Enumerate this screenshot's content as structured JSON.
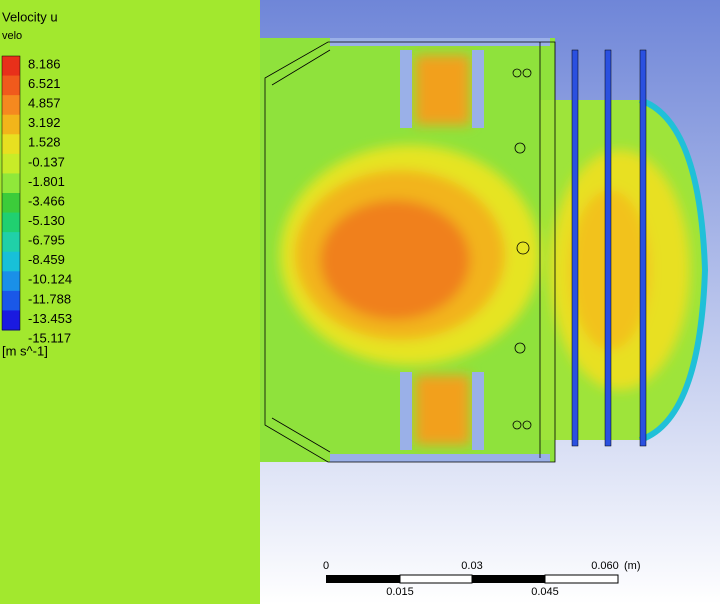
{
  "legend": {
    "title": "Velocity u",
    "variable": "velo",
    "levels": [
      "8.186",
      "6.521",
      "4.857",
      "3.192",
      "1.528",
      "-0.137",
      "-1.801",
      "-3.466",
      "-5.130",
      "-6.795",
      "-8.459",
      "-10.124",
      "-11.788",
      "-13.453",
      "-15.117"
    ],
    "unit": "[m s^-1]"
  },
  "scale_bar": {
    "top_labels": [
      "0",
      "0.03",
      "0.060"
    ],
    "unit": "(m)",
    "bottom_labels": [
      "0.015",
      "0.045"
    ]
  }
}
